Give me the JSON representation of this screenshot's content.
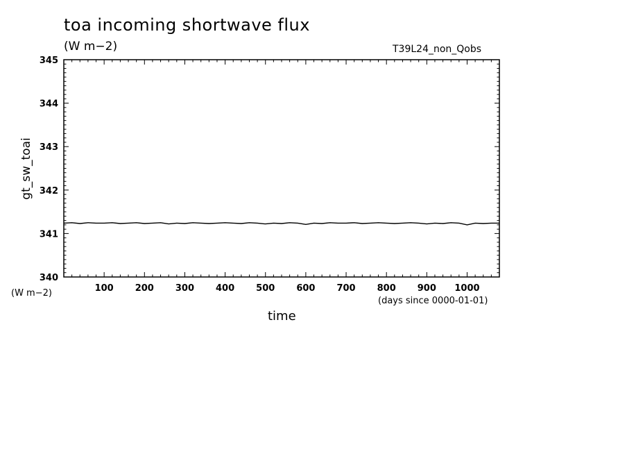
{
  "chart_data": {
    "type": "line",
    "title": "toa incoming shortwave flux",
    "title_units": "(W m−2)",
    "run_label": "T39L24_non_Qobs",
    "ylabel": "gt_sw_toai",
    "y_units": "(W m−2)",
    "xlabel": "time",
    "x_units": "(days since 0000-01-01)",
    "xlim": [
      0,
      1080
    ],
    "ylim": [
      340,
      345
    ],
    "x_ticks": [
      100,
      200,
      300,
      400,
      500,
      600,
      700,
      800,
      900,
      1000
    ],
    "y_ticks": [
      340,
      341,
      342,
      343,
      344,
      345
    ],
    "grid": false,
    "series": [
      {
        "x": [
          0,
          20,
          40,
          60,
          80,
          100,
          120,
          140,
          160,
          180,
          200,
          220,
          240,
          260,
          280,
          300,
          320,
          340,
          360,
          380,
          400,
          420,
          440,
          460,
          480,
          500,
          520,
          540,
          560,
          580,
          600,
          620,
          640,
          660,
          680,
          700,
          720,
          740,
          760,
          780,
          800,
          820,
          840,
          860,
          880,
          900,
          920,
          940,
          960,
          980,
          1000,
          1020,
          1040,
          1060,
          1080
        ],
        "values": [
          341.24,
          341.25,
          341.23,
          341.25,
          341.24,
          341.24,
          341.25,
          341.23,
          341.24,
          341.25,
          341.23,
          341.24,
          341.25,
          341.22,
          341.24,
          341.23,
          341.25,
          341.24,
          341.23,
          341.24,
          341.25,
          341.24,
          341.23,
          341.25,
          341.24,
          341.22,
          341.24,
          341.23,
          341.25,
          341.24,
          341.21,
          341.24,
          341.23,
          341.25,
          341.24,
          341.24,
          341.25,
          341.23,
          341.24,
          341.25,
          341.24,
          341.23,
          341.24,
          341.25,
          341.24,
          341.22,
          341.24,
          341.23,
          341.25,
          341.24,
          341.2,
          341.24,
          341.23,
          341.24,
          341.24
        ]
      }
    ]
  }
}
